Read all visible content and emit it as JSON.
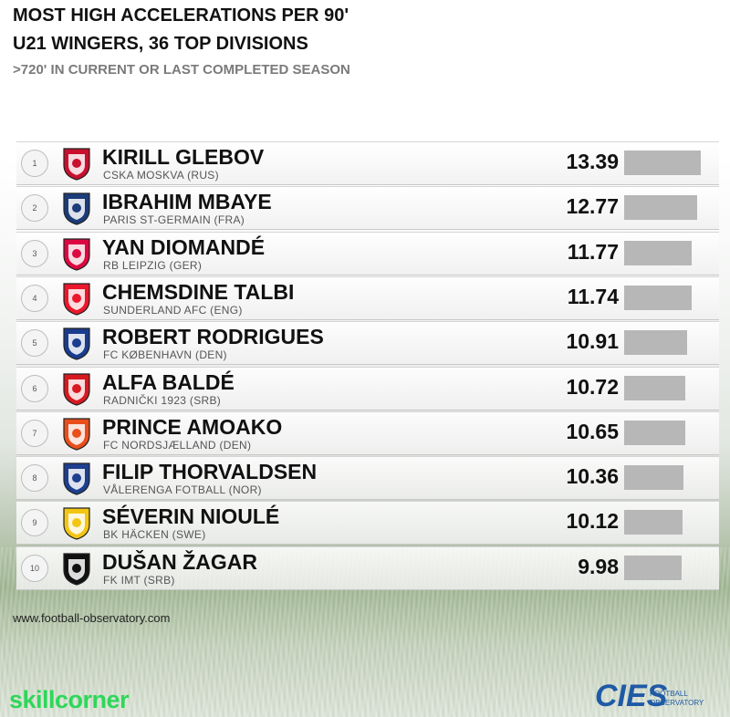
{
  "header": {
    "title": "MOST HIGH ACCELERATIONS PER 90'",
    "subtitle": "U21 WINGERS, 36 TOP DIVISIONS",
    "note": ">720' IN CURRENT OR LAST COMPLETED SEASON"
  },
  "chart_data": {
    "type": "bar",
    "title": "MOST HIGH ACCELERATIONS PER 90'",
    "subtitle": "U21 WINGERS, 36 TOP DIVISIONS",
    "note": ">720' IN CURRENT OR LAST COMPLETED SEASON",
    "xlim": [
      0,
      14
    ],
    "rows": [
      {
        "rank": "1",
        "name": "KIRILL GLEBOV",
        "club": "CSKA MOSKVA (RUS)",
        "value": "13.39",
        "crest": "cska-crest",
        "color": "#c8102e"
      },
      {
        "rank": "2",
        "name": "IBRAHIM MBAYE",
        "club": "PARIS ST-GERMAIN (FRA)",
        "value": "12.77",
        "crest": "psg-crest",
        "color": "#1b3c7a"
      },
      {
        "rank": "3",
        "name": "YAN DIOMANDÉ",
        "club": "RB LEIPZIG (GER)",
        "value": "11.77",
        "crest": "leipzig-crest",
        "color": "#dd0741"
      },
      {
        "rank": "4",
        "name": "CHEMSDINE TALBI",
        "club": "SUNDERLAND AFC (ENG)",
        "value": "11.74",
        "crest": "sunderland-crest",
        "color": "#eb172b"
      },
      {
        "rank": "5",
        "name": "ROBERT RODRIGUES",
        "club": "FC KØBENHAVN (DEN)",
        "value": "10.91",
        "crest": "fck-crest",
        "color": "#1a3c8f"
      },
      {
        "rank": "6",
        "name": "ALFA BALDÉ",
        "club": "RADNIČKI 1923 (SRB)",
        "value": "10.72",
        "crest": "radnicki-crest",
        "color": "#d71920"
      },
      {
        "rank": "7",
        "name": "PRINCE AMOAKO",
        "club": "FC NORDSJÆLLAND (DEN)",
        "value": "10.65",
        "crest": "nordsjaelland-crest",
        "color": "#e94e1b"
      },
      {
        "rank": "8",
        "name": "FILIP THORVALDSEN",
        "club": "VÅLERENGA FOTBALL (NOR)",
        "value": "10.36",
        "crest": "valerenga-crest",
        "color": "#1d3f8f"
      },
      {
        "rank": "9",
        "name": "SÉVERIN NIOULÉ",
        "club": "BK HÄCKEN (SWE)",
        "value": "10.12",
        "crest": "hacken-crest",
        "color": "#f3c614"
      },
      {
        "rank": "10",
        "name": "DUŠAN ŽAGAR",
        "club": "FK IMT (SRB)",
        "value": "9.98",
        "crest": "imt-crest",
        "color": "#111111"
      }
    ],
    "bar_color": "#b7b7b7"
  },
  "footer": {
    "url": "www.football-observatory.com",
    "brand_left": "SKILLCORNER",
    "brand_right": "CIES",
    "brand_right_sub1": "FOOTBALL",
    "brand_right_sub2": "OBSERVATORY"
  }
}
